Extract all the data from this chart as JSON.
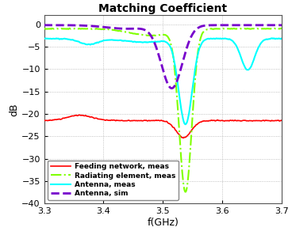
{
  "title": "Matching Coefficient",
  "xlabel": "f(GHz)",
  "ylabel": "dB",
  "xlim": [
    3.3,
    3.7
  ],
  "ylim": [
    -40,
    2
  ],
  "yticks": [
    0,
    -5,
    -10,
    -15,
    -20,
    -25,
    -30,
    -35,
    -40
  ],
  "xticks": [
    3.3,
    3.4,
    3.5,
    3.6,
    3.7
  ],
  "bg_color": "#ffffff",
  "grid_color": "#b0b0b0",
  "series": {
    "feeding_network": {
      "label": "Feeding network, meas",
      "color": "#ff0000",
      "linestyle": "-",
      "linewidth": 1.2
    },
    "radiating_element": {
      "label": "Radiating element, meas",
      "color": "#80ff00",
      "linestyle": "-.",
      "linewidth": 1.5
    },
    "antenna_meas": {
      "label": "Antenna, meas",
      "color": "#00ffff",
      "linestyle": "-",
      "linewidth": 1.5
    },
    "antenna_sim": {
      "label": "Antenna, sim",
      "color": "#7700cc",
      "linestyle": "--",
      "linewidth": 2.0
    }
  }
}
